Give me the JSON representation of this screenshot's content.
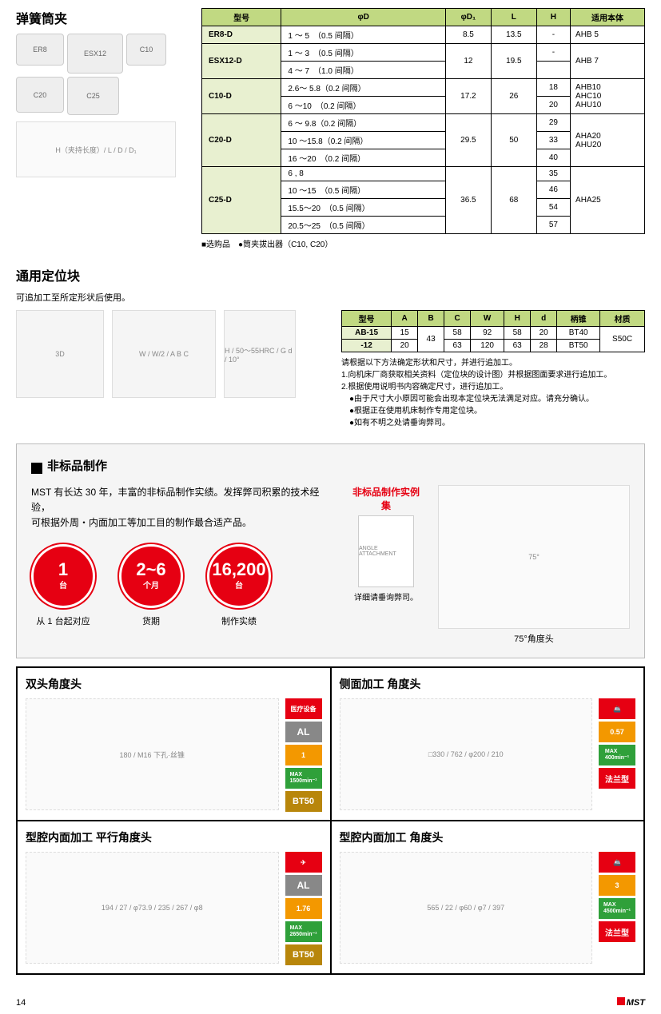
{
  "page_number": "14",
  "brand": "MST",
  "collet": {
    "title": "弹簧筒夹",
    "img_labels": [
      "ER8",
      "ESX12",
      "C10",
      "C20",
      "C25"
    ],
    "diagram_labels": {
      "h": "H",
      "h_sub": "（夹持长度）",
      "l": "L",
      "d": "D",
      "d1": "D₁"
    },
    "headers": [
      "型号",
      "φD",
      "φD₁",
      "L",
      "H",
      "适用本体"
    ],
    "rows": [
      {
        "model": "ER8-D",
        "phid": "1 ～ 5　（0.5 间隔）",
        "d1": "8.5",
        "l": "13.5",
        "h": "-",
        "body": "AHB 5"
      },
      {
        "model": "ESX12-D",
        "phid": "1 ～ 3　（0.5 间隔）",
        "d1": "12",
        "l": "19.5",
        "h": "-",
        "body": "AHB 7",
        "rowspan": 2
      },
      {
        "phid": "4 ～ 7　（1.0 间隔）"
      },
      {
        "model": "C10-D",
        "phid": "2.6～ 5.8（0.2 间隔）",
        "d1": "17.2",
        "l": "26",
        "h": "18",
        "body": "AHB10\nAHC10\nAHU10",
        "rowspan": 2
      },
      {
        "phid": "6 ～10　（0.2 间隔）",
        "h": "20"
      },
      {
        "model": "C20-D",
        "phid": "6 ～ 9.8（0.2 间隔）",
        "d1": "29.5",
        "l": "50",
        "h": "29",
        "body": "AHA20\nAHU20",
        "rowspan": 3
      },
      {
        "phid": "10 ～15.8（0.2 间隔）",
        "h": "33"
      },
      {
        "phid": "16 ～20　（0.2 间隔）",
        "h": "40"
      },
      {
        "model": "C25-D",
        "phid": "6 , 8",
        "d1": "36.5",
        "l": "68",
        "h": "35",
        "body": "AHA25",
        "rowspan": 4
      },
      {
        "phid": "10 ～15　（0.5 间隔）",
        "h": "46"
      },
      {
        "phid": "15.5～20　（0.5 间隔）",
        "h": "54"
      },
      {
        "phid": "20.5～25　（0.5 间隔）",
        "h": "57"
      }
    ],
    "note": "■选购品　●筒夹拔出器（C10, C20）"
  },
  "locator": {
    "title": "通用定位块",
    "sub": "可追加工至所定形状后使用。",
    "dia_labels": {
      "w": "W",
      "w2": "W/2",
      "a": "A",
      "b": "B",
      "c": "C",
      "h": "H",
      "g": "G",
      "d": "d",
      "hrc": "50～55HRC",
      "angle": "10°"
    },
    "headers": [
      "型号",
      "A",
      "B",
      "C",
      "W",
      "H",
      "d",
      "柄锥",
      "材质"
    ],
    "rows": [
      {
        "model": "AB-15",
        "a": "15",
        "b": "43",
        "c": "58",
        "w": "92",
        "h": "58",
        "d": "20",
        "taper": "BT40",
        "mat": "S50C"
      },
      {
        "model": "-12",
        "a": "20",
        "b": "",
        "c": "63",
        "w": "120",
        "h": "63",
        "d": "28",
        "taper": "BT50",
        "mat": ""
      }
    ],
    "notes": [
      "请根据以下方法确定形状和尺寸，并进行追加工。",
      "1.向机床厂商获取相关资料（定位块的设计图）并根据图面要求进行追加工。",
      "2.根据使用说明书内容确定尺寸，进行追加工。",
      "　●由于尺寸大小原因可能会出现本定位块无法满足对应。请充分确认。",
      "　●根据正在使用机床制作专用定位块。",
      "　●如有不明之处请垂询弊司。"
    ]
  },
  "custom": {
    "title": "非标品制作",
    "desc_l1": "MST 有长达 30 年，丰富的非标品制作实绩。发挥弊司积累的技术经验，",
    "desc_l2": "可根据外周・内面加工等加工目的制作最合适产品。",
    "example_title": "非标品制作实例集",
    "circles": [
      {
        "big": "1",
        "small": "台",
        "label": "从 1 台起对应"
      },
      {
        "big": "2~6",
        "small": "个月",
        "label": "货期"
      },
      {
        "big": "16,200",
        "small": "台",
        "label": "制作实绩"
      }
    ],
    "inquiry": "详细请垂询弊司。",
    "angle_label": "75°角度头",
    "angle_value": "75°"
  },
  "examples": {
    "cells": [
      {
        "title": "双头角度头",
        "dims": {
          "h": "180",
          "note": "M16\n下孔·丝锥"
        },
        "tags": [
          {
            "cls": "tag-red",
            "txt": "医疗设备"
          },
          {
            "cls": "tag-gray",
            "txt": "AL"
          },
          {
            "cls": "tag-orange",
            "txt": "1"
          },
          {
            "cls": "tag-green",
            "txt": "MAX\n1500min⁻¹"
          },
          {
            "cls": "tag-tan",
            "txt": "BT50"
          }
        ]
      },
      {
        "title": "侧面加工 角度头",
        "dims": {
          "a": "□330",
          "b": "762",
          "c": "φ200",
          "d": "210"
        },
        "tags": [
          {
            "cls": "tag-red",
            "txt": "🚢"
          },
          {
            "cls": "tag-orange",
            "txt": "0.57"
          },
          {
            "cls": "tag-green",
            "txt": "MAX\n400min⁻¹"
          },
          {
            "cls": "tag-flange",
            "txt": "法兰型"
          }
        ]
      },
      {
        "title": "型腔内面加工 平行角度头",
        "dims": {
          "a": "194",
          "b": "27",
          "c": "φ73.9",
          "d": "235",
          "e": "267",
          "f": "φ8"
        },
        "tags": [
          {
            "cls": "tag-red",
            "txt": "✈"
          },
          {
            "cls": "tag-gray",
            "txt": "AL"
          },
          {
            "cls": "tag-orange",
            "txt": "1.76"
          },
          {
            "cls": "tag-green",
            "txt": "MAX\n2650min⁻¹"
          },
          {
            "cls": "tag-tan",
            "txt": "BT50"
          }
        ]
      },
      {
        "title": "型腔内面加工 角度头",
        "dims": {
          "a": "565",
          "b": "22",
          "c": "φ60",
          "d": "φ7",
          "e": "397"
        },
        "tags": [
          {
            "cls": "tag-red",
            "txt": "🚢"
          },
          {
            "cls": "tag-orange",
            "txt": "3"
          },
          {
            "cls": "tag-green",
            "txt": "MAX\n4500min⁻¹"
          },
          {
            "cls": "tag-flange",
            "txt": "法兰型"
          }
        ]
      }
    ]
  }
}
